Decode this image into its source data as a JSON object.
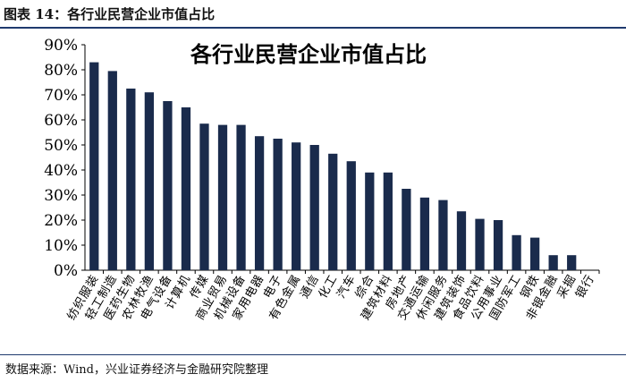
{
  "figure": {
    "caption": "图表 14：各行业民营企业市值占比",
    "source": "数据来源：Wind，兴业证券经济与金融研究院整理"
  },
  "chart_data": {
    "type": "bar",
    "title": "各行业民营企业市值占比",
    "xlabel": "",
    "ylabel": "",
    "ylim": [
      0,
      90
    ],
    "yticks": [
      "0%",
      "10%",
      "20%",
      "30%",
      "40%",
      "50%",
      "60%",
      "70%",
      "80%",
      "90%"
    ],
    "grid": false,
    "bar_color": "#1a2b4c",
    "categories": [
      "纺织服装",
      "轻工制造",
      "医药生物",
      "农林牧渔",
      "电气设备",
      "计算机",
      "传媒",
      "商业贸易",
      "机械设备",
      "家用电器",
      "电子",
      "有色金属",
      "通信",
      "化工",
      "汽车",
      "综合",
      "建筑材料",
      "房地产",
      "交通运输",
      "休闲服务",
      "建筑装饰",
      "食品饮料",
      "公用事业",
      "国防军工",
      "钢铁",
      "非银金融",
      "采掘",
      "银行"
    ],
    "values": [
      83,
      79.5,
      72.5,
      71,
      67.5,
      65,
      58.5,
      58,
      58,
      53.5,
      52.5,
      51,
      50,
      46.5,
      43.5,
      39,
      39,
      32.5,
      29,
      28,
      23.5,
      20.5,
      20,
      14,
      13,
      6,
      6,
      0
    ]
  }
}
